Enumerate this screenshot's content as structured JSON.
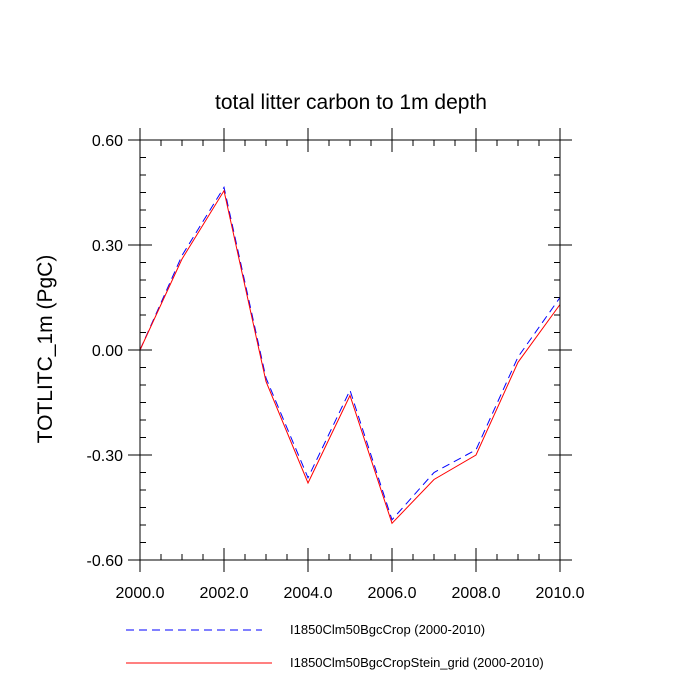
{
  "chart_data": {
    "type": "line",
    "title": "total litter carbon to 1m depth",
    "xlabel": "",
    "ylabel": "TOTLITC_1m  (PgC)",
    "xlim": [
      2000,
      2010
    ],
    "ylim": [
      -0.6,
      0.6
    ],
    "xticks": [
      2000,
      2002,
      2004,
      2006,
      2008,
      2010
    ],
    "xtick_labels": [
      "2000.0",
      "2002.0",
      "2004.0",
      "2006.0",
      "2008.0",
      "2010.0"
    ],
    "yticks": [
      0.6,
      0.3,
      0.0,
      -0.3,
      -0.6
    ],
    "ytick_labels": [
      "0.60",
      "0.30",
      "0.00",
      "-0.30",
      "-0.60"
    ],
    "grid": false,
    "legend_position": "bottom",
    "x": [
      2000,
      2001,
      2002,
      2003,
      2004,
      2005,
      2006,
      2007,
      2008,
      2009,
      2010
    ],
    "series": [
      {
        "name": "I1850Clm50BgcCrop (2000-2010)",
        "color": "#0000ff",
        "dash": "dashed",
        "values": [
          0.0,
          0.27,
          0.465,
          -0.08,
          -0.365,
          -0.115,
          -0.485,
          -0.35,
          -0.285,
          -0.02,
          0.15
        ]
      },
      {
        "name": "I1850Clm50BgcCropStein_grid (2000-2010)",
        "color": "#ff0000",
        "dash": "solid",
        "values": [
          0.0,
          0.26,
          0.455,
          -0.09,
          -0.38,
          -0.13,
          -0.495,
          -0.37,
          -0.3,
          -0.035,
          0.13
        ]
      }
    ]
  }
}
